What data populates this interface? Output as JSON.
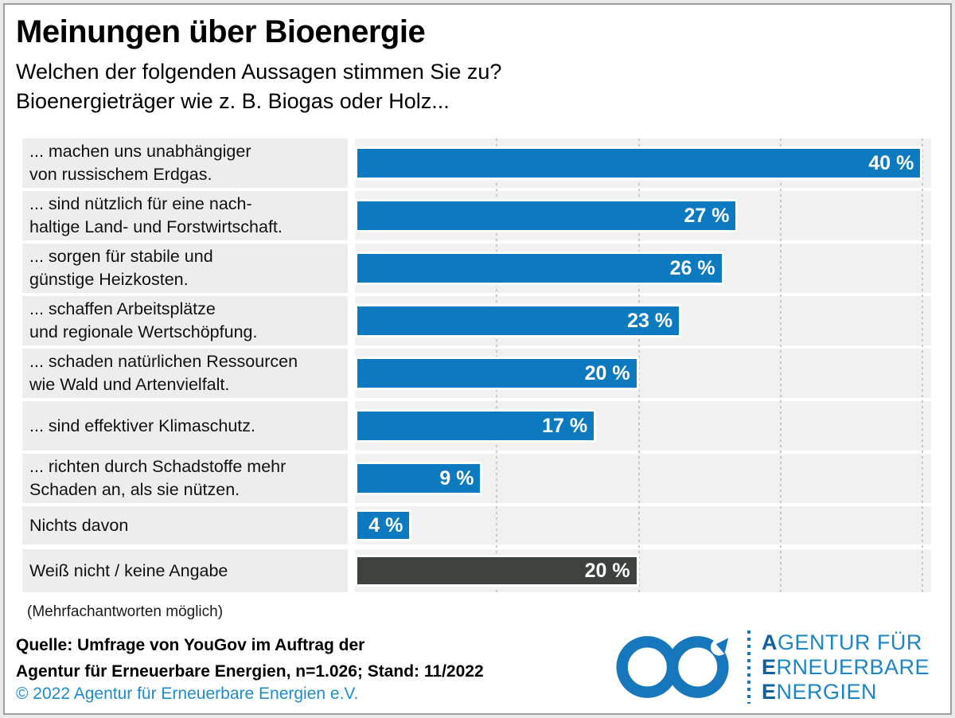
{
  "header": {
    "title": "Meinungen über Bioenergie",
    "subtitle_line1": "Welchen der folgenden Aussagen stimmen Sie zu?",
    "subtitle_line2": "Bioenergieträger wie z. B. Biogas oder Holz..."
  },
  "chart_data": {
    "type": "bar",
    "orientation": "horizontal",
    "title": "Meinungen über Bioenergie",
    "unit": "%",
    "axis_max": 40.6,
    "gridlines": [
      10,
      20,
      30,
      40
    ],
    "grid": "dotted-vertical",
    "categories": [
      "... machen uns unabhängiger von russischem Erdgas.",
      "... sind nützlich für eine nachhaltige Land- und Forstwirtschaft.",
      "... sorgen für stabile und günstige Heizkosten.",
      "... schaffen Arbeitsplätze und regionale Wertschöpfung.",
      "... schaden natürlichen Ressourcen wie Wald und Artenvielfalt.",
      "... sind effektiver Klimaschutz.",
      "... richten durch Schadstoffe mehr Schaden an, als sie nützen.",
      "Nichts davon",
      "Weiß nicht / keine Angabe"
    ],
    "values": [
      40,
      27,
      26,
      23,
      20,
      17,
      9,
      4,
      20
    ],
    "rows": [
      {
        "label": "... machen uns unabhängiger\nvon russischem Erdgas.",
        "value": 40,
        "value_label": "40 %",
        "color": "blue"
      },
      {
        "label": "... sind nützlich für eine nach-\nhaltige Land- und Forstwirtschaft.",
        "value": 27,
        "value_label": "27 %",
        "color": "blue"
      },
      {
        "label": "... sorgen für stabile und\ngünstige Heizkosten.",
        "value": 26,
        "value_label": "26 %",
        "color": "blue"
      },
      {
        "label": "... schaffen Arbeitsplätze\nund regionale Wertschöpfung.",
        "value": 23,
        "value_label": "23 %",
        "color": "blue"
      },
      {
        "label": "... schaden natürlichen Ressourcen\nwie Wald und Artenvielfalt.",
        "value": 20,
        "value_label": "20 %",
        "color": "blue"
      },
      {
        "label": "... sind effektiver Klimaschutz.",
        "value": 17,
        "value_label": "17 %",
        "color": "blue"
      },
      {
        "label": "... richten durch Schadstoffe mehr\nSchaden an, als sie nützen.",
        "value": 9,
        "value_label": "9 %",
        "color": "blue"
      },
      {
        "label": "Nichts davon",
        "value": 4,
        "value_label": "4 %",
        "color": "blue"
      },
      {
        "label": "Weiß nicht / keine Angabe",
        "value": 20,
        "value_label": "20 %",
        "color": "dark"
      }
    ],
    "colors": {
      "blue": "#0d7ac0",
      "dark": "#3d423e"
    }
  },
  "footer": {
    "note": "(Mehrfachantworten möglich)",
    "source_line1": "Quelle: Umfrage von YouGov im Auftrag der",
    "source_line2": "Agentur für Erneuerbare Energien, n=1.026; Stand: 11/2022",
    "copyright": "© 2022 Agentur für Erneuerbare Energien e.V."
  },
  "logo": {
    "line1_initial": "A",
    "line1_rest": "GENTUR FÜR",
    "line2_initial": "E",
    "line2_rest": "RNEUERBARE",
    "line3_initial": "E",
    "line3_rest": "NERGIEN",
    "color": "#1777bd"
  }
}
